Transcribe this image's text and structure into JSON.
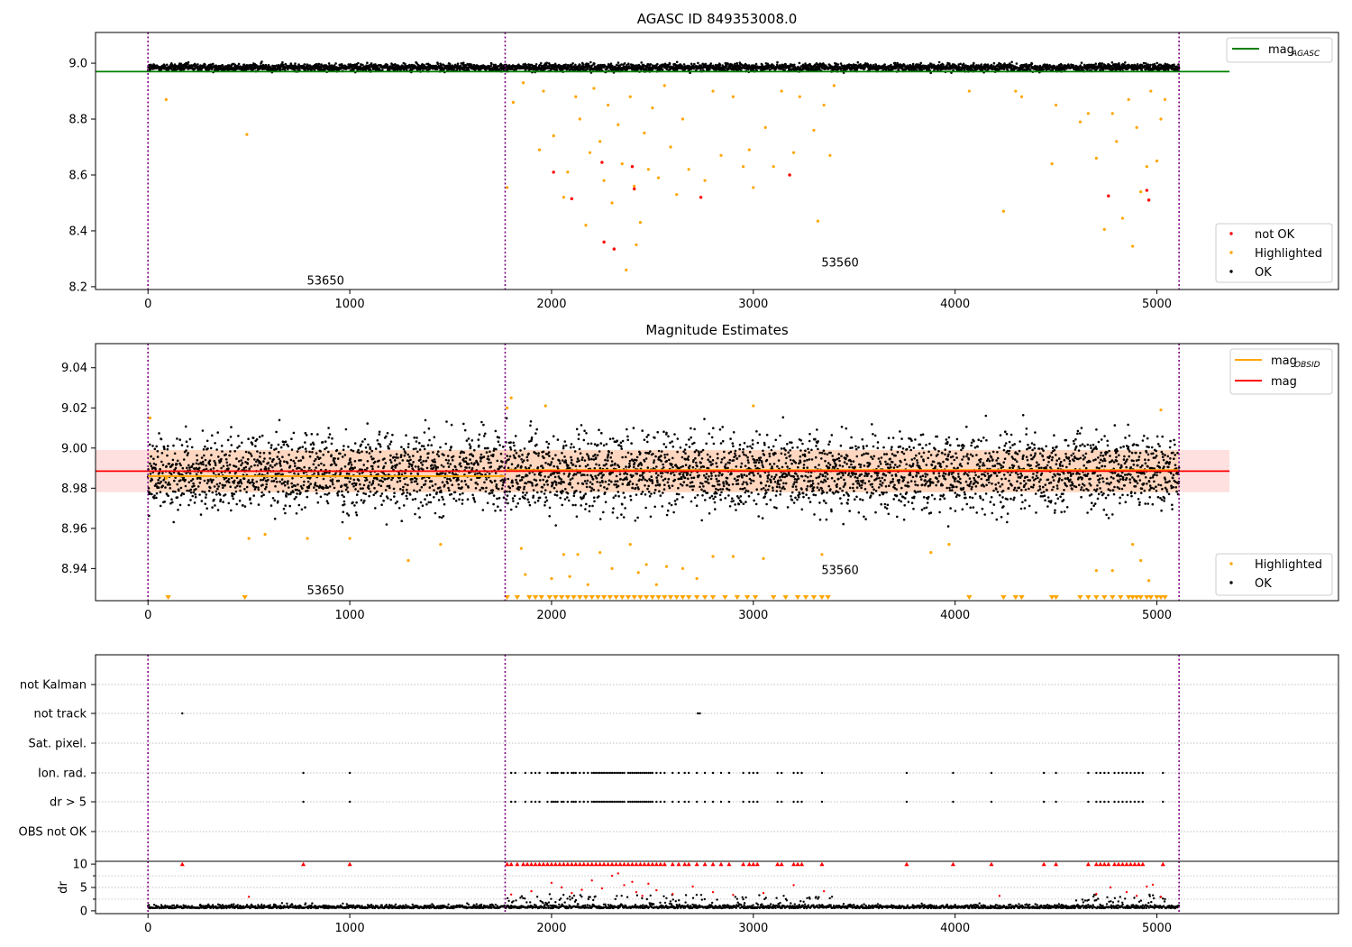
{
  "chart_data": [
    {
      "type": "scatter",
      "title": "AGASC ID 849353008.0",
      "xlim": [
        -260,
        5900
      ],
      "ylim": [
        8.19,
        9.11
      ],
      "yticks": [
        "8.2",
        "8.4",
        "8.6",
        "8.8",
        "9.0"
      ],
      "xticks": [
        "0",
        "1000",
        "2000",
        "3000",
        "4000",
        "5000"
      ],
      "obsid_boundaries": [
        0,
        1770,
        5110
      ],
      "obsid_labels": [
        {
          "text": "53650",
          "x": 880,
          "y": 8.22
        },
        {
          "text": "53560",
          "x": 3430,
          "y": 8.285
        }
      ],
      "agasc_mag": 8.97,
      "ok_band": {
        "center": 8.985,
        "half_width": 0.012
      },
      "highlighted_points": [
        [
          90,
          8.87
        ],
        [
          490,
          8.745
        ],
        [
          1780,
          8.555
        ],
        [
          1810,
          8.86
        ],
        [
          1860,
          8.93
        ],
        [
          1940,
          8.69
        ],
        [
          1960,
          8.9
        ],
        [
          2010,
          8.74
        ],
        [
          2060,
          8.52
        ],
        [
          2080,
          8.61
        ],
        [
          2120,
          8.88
        ],
        [
          2140,
          8.8
        ],
        [
          2170,
          8.42
        ],
        [
          2190,
          8.68
        ],
        [
          2210,
          8.91
        ],
        [
          2240,
          8.72
        ],
        [
          2260,
          8.58
        ],
        [
          2280,
          8.85
        ],
        [
          2300,
          8.5
        ],
        [
          2330,
          8.78
        ],
        [
          2350,
          8.64
        ],
        [
          2370,
          8.26
        ],
        [
          2390,
          8.88
        ],
        [
          2410,
          8.56
        ],
        [
          2420,
          8.35
        ],
        [
          2440,
          8.43
        ],
        [
          2460,
          8.75
        ],
        [
          2480,
          8.62
        ],
        [
          2500,
          8.84
        ],
        [
          2530,
          8.59
        ],
        [
          2560,
          8.92
        ],
        [
          2590,
          8.7
        ],
        [
          2620,
          8.53
        ],
        [
          2650,
          8.8
        ],
        [
          2680,
          8.62
        ],
        [
          2760,
          8.58
        ],
        [
          2800,
          8.9
        ],
        [
          2840,
          8.67
        ],
        [
          2900,
          8.88
        ],
        [
          2950,
          8.63
        ],
        [
          2980,
          8.69
        ],
        [
          3000,
          8.555
        ],
        [
          3060,
          8.77
        ],
        [
          3100,
          8.63
        ],
        [
          3140,
          8.9
        ],
        [
          3200,
          8.68
        ],
        [
          3230,
          8.88
        ],
        [
          3300,
          8.76
        ],
        [
          3320,
          8.435
        ],
        [
          3350,
          8.85
        ],
        [
          3380,
          8.67
        ],
        [
          3400,
          8.92
        ],
        [
          4070,
          8.9
        ],
        [
          4240,
          8.47
        ],
        [
          4300,
          8.9
        ],
        [
          4330,
          8.88
        ],
        [
          4480,
          8.64
        ],
        [
          4500,
          8.85
        ],
        [
          4620,
          8.79
        ],
        [
          4660,
          8.82
        ],
        [
          4700,
          8.66
        ],
        [
          4740,
          8.405
        ],
        [
          4780,
          8.82
        ],
        [
          4800,
          8.72
        ],
        [
          4830,
          8.445
        ],
        [
          4860,
          8.87
        ],
        [
          4880,
          8.345
        ],
        [
          4900,
          8.77
        ],
        [
          4920,
          8.54
        ],
        [
          4950,
          8.63
        ],
        [
          4970,
          8.9
        ],
        [
          5000,
          8.65
        ],
        [
          5020,
          8.8
        ],
        [
          5040,
          8.87
        ]
      ],
      "not_ok_points": [
        [
          2010,
          8.61
        ],
        [
          2100,
          8.515
        ],
        [
          2250,
          8.645
        ],
        [
          2260,
          8.36
        ],
        [
          2310,
          8.335
        ],
        [
          2400,
          8.63
        ],
        [
          2410,
          8.55
        ],
        [
          2740,
          8.52
        ],
        [
          3180,
          8.6
        ],
        [
          4760,
          8.525
        ],
        [
          4950,
          8.545
        ],
        [
          4960,
          8.51
        ]
      ],
      "legend_line": {
        "label": "mag",
        "subscript": "AGASC",
        "color": "#008000",
        "position": "top-right"
      },
      "legend_points": {
        "position": "bottom-right",
        "entries": [
          {
            "label": "not OK",
            "color": "#ff0000"
          },
          {
            "label": "Highlighted",
            "color": "#ffa500"
          },
          {
            "label": "OK",
            "color": "#000000"
          }
        ]
      }
    },
    {
      "type": "scatter",
      "title": "Magnitude Estimates",
      "xlim": [
        -260,
        5900
      ],
      "ylim": [
        8.924,
        9.052
      ],
      "yticks": [
        "8.94",
        "8.96",
        "8.98",
        "9.00",
        "9.02",
        "9.04"
      ],
      "xticks": [
        "0",
        "1000",
        "2000",
        "3000",
        "4000",
        "5000"
      ],
      "obsid_boundaries": [
        0,
        1770,
        5110
      ],
      "obsid_labels": [
        {
          "text": "53650",
          "x": 880,
          "y": 8.929
        },
        {
          "text": "53560",
          "x": 3430,
          "y": 8.939
        }
      ],
      "mag": 8.9885,
      "mag_band": [
        8.978,
        8.999
      ],
      "mag_obsid": [
        {
          "x0": 0,
          "x1": 1770,
          "y": 8.986
        },
        {
          "x0": 1770,
          "x1": 5110,
          "y": 8.989
        }
      ],
      "band_center_ok": 8.988,
      "band_spread_ok": 0.011,
      "highlighted_points": [
        [
          10,
          9.015
        ],
        [
          90,
          8.985
        ],
        [
          500,
          8.955
        ],
        [
          580,
          8.957
        ],
        [
          790,
          8.955
        ],
        [
          1000,
          8.955
        ],
        [
          1290,
          8.944
        ],
        [
          1450,
          8.952
        ],
        [
          1780,
          9.02
        ],
        [
          1800,
          9.025
        ],
        [
          1850,
          8.95
        ],
        [
          1870,
          8.937
        ],
        [
          1970,
          9.021
        ],
        [
          2000,
          8.935
        ],
        [
          2060,
          8.947
        ],
        [
          2090,
          8.936
        ],
        [
          2130,
          8.947
        ],
        [
          2180,
          8.932
        ],
        [
          2240,
          8.948
        ],
        [
          2300,
          8.94
        ],
        [
          2390,
          8.952
        ],
        [
          2430,
          8.938
        ],
        [
          2470,
          8.942
        ],
        [
          2520,
          8.932
        ],
        [
          2570,
          8.941
        ],
        [
          2650,
          8.94
        ],
        [
          2720,
          8.935
        ],
        [
          2800,
          8.946
        ],
        [
          2900,
          8.946
        ],
        [
          3000,
          9.021
        ],
        [
          3050,
          8.945
        ],
        [
          3340,
          8.947
        ],
        [
          3880,
          8.948
        ],
        [
          3970,
          8.952
        ],
        [
          4700,
          8.939
        ],
        [
          4780,
          8.939
        ],
        [
          4880,
          8.952
        ],
        [
          4920,
          8.944
        ],
        [
          4960,
          8.934
        ],
        [
          5020,
          9.019
        ]
      ],
      "bottom_markers_x": [
        100,
        480,
        1780,
        1830,
        1890,
        1920,
        1950,
        1990,
        2020,
        2050,
        2080,
        2110,
        2140,
        2170,
        2200,
        2230,
        2260,
        2290,
        2320,
        2350,
        2380,
        2410,
        2440,
        2470,
        2500,
        2530,
        2560,
        2590,
        2620,
        2650,
        2680,
        2720,
        2760,
        2800,
        2860,
        2920,
        2970,
        3010,
        3100,
        3160,
        3220,
        3260,
        3300,
        3340,
        3370,
        4070,
        4240,
        4300,
        4330,
        4480,
        4500,
        4620,
        4660,
        4700,
        4740,
        4780,
        4820,
        4860,
        4880,
        4900,
        4920,
        4950,
        4970,
        5000,
        5020,
        5040
      ],
      "legend_lines": {
        "position": "top-right",
        "entries": [
          {
            "label": "mag",
            "subscript": "OBSID",
            "color": "#ffa500"
          },
          {
            "label": "mag",
            "subscript": "",
            "color": "#ff0000"
          }
        ]
      },
      "legend_points": {
        "position": "bottom-right",
        "entries": [
          {
            "label": "Highlighted",
            "color": "#ffa500"
          },
          {
            "label": "OK",
            "color": "#000000"
          }
        ]
      }
    },
    {
      "type": "scatter",
      "xlim": [
        -260,
        5900
      ],
      "xticks": [
        "0",
        "1000",
        "2000",
        "3000",
        "4000",
        "5000"
      ],
      "flag_rows": [
        "not Kalman",
        "not track",
        "Sat. pixel.",
        "Ion. rad.",
        "dr > 5",
        "OBS not OK"
      ],
      "obsid_boundaries": [
        0,
        1770,
        5110
      ],
      "not_track_x": [
        170,
        2725,
        2735
      ],
      "flag_x": [
        770,
        1000,
        1800,
        1820,
        1870,
        1900,
        1920,
        1940,
        1980,
        2000,
        2010,
        2020,
        2030,
        2050,
        2060,
        2080,
        2100,
        2110,
        2120,
        2140,
        2160,
        2180,
        2200,
        2210,
        2220,
        2230,
        2240,
        2250,
        2260,
        2270,
        2280,
        2290,
        2300,
        2310,
        2320,
        2330,
        2340,
        2350,
        2360,
        2380,
        2390,
        2400,
        2410,
        2420,
        2430,
        2440,
        2450,
        2460,
        2470,
        2480,
        2490,
        2500,
        2520,
        2540,
        2560,
        2600,
        2630,
        2660,
        2680,
        2720,
        2760,
        2800,
        2840,
        2880,
        2950,
        2980,
        3000,
        3020,
        3120,
        3140,
        3200,
        3220,
        3240,
        3340,
        3760,
        3990,
        4180,
        4440,
        4500,
        4660,
        4700,
        4720,
        4740,
        4760,
        4790,
        4810,
        4830,
        4850,
        4870,
        4890,
        4910,
        4930,
        5030
      ]
    },
    {
      "type": "scatter",
      "ylabel": "dr",
      "xlim": [
        -260,
        5900
      ],
      "ylim": [
        -0.6,
        10.6
      ],
      "yticks": [
        "0",
        "5",
        "10"
      ],
      "xticks": [
        "0",
        "1000",
        "2000",
        "3000",
        "4000",
        "5000"
      ],
      "obsid_boundaries": [
        0,
        1770,
        5110
      ],
      "red_points": [
        [
          500,
          3.0
        ],
        [
          1800,
          3.5
        ],
        [
          1900,
          4.2
        ],
        [
          2000,
          6.0
        ],
        [
          2050,
          5.0
        ],
        [
          2100,
          3.8
        ],
        [
          2150,
          4.5
        ],
        [
          2200,
          6.5
        ],
        [
          2250,
          4.8
        ],
        [
          2300,
          7.5
        ],
        [
          2330,
          8.0
        ],
        [
          2360,
          5.5
        ],
        [
          2400,
          6.2
        ],
        [
          2420,
          4.0
        ],
        [
          2450,
          3.2
        ],
        [
          2480,
          5.8
        ],
        [
          2520,
          4.4
        ],
        [
          2600,
          3.6
        ],
        [
          2700,
          5.2
        ],
        [
          2800,
          4.0
        ],
        [
          2900,
          3.4
        ],
        [
          3050,
          3.8
        ],
        [
          3200,
          5.5
        ],
        [
          3350,
          4.2
        ],
        [
          4220,
          3.2
        ],
        [
          4700,
          3.6
        ],
        [
          4770,
          5.0
        ],
        [
          4850,
          4.0
        ],
        [
          4900,
          3.2
        ],
        [
          4950,
          5.2
        ],
        [
          4980,
          5.6
        ],
        [
          5020,
          3.0
        ]
      ],
      "red_clip_x": [
        170,
        770,
        1000,
        1780,
        1800,
        1830,
        1860,
        1880,
        1900,
        1920,
        1940,
        1960,
        1980,
        2000,
        2020,
        2040,
        2060,
        2080,
        2100,
        2120,
        2140,
        2160,
        2180,
        2200,
        2220,
        2240,
        2260,
        2280,
        2300,
        2320,
        2340,
        2360,
        2380,
        2400,
        2420,
        2440,
        2460,
        2480,
        2500,
        2520,
        2540,
        2560,
        2600,
        2630,
        2660,
        2680,
        2720,
        2760,
        2800,
        2840,
        2880,
        2950,
        2980,
        3000,
        3020,
        3120,
        3140,
        3200,
        3220,
        3240,
        3340,
        3760,
        3990,
        4180,
        4440,
        4500,
        4660,
        4700,
        4720,
        4740,
        4760,
        4790,
        4810,
        4830,
        4850,
        4870,
        4890,
        4910,
        4930,
        5030
      ]
    }
  ],
  "colors": {
    "ok": "#000000",
    "highlighted": "#ffa500",
    "not_ok": "#ff0000",
    "agasc_line": "#008000",
    "mag_line": "#ff0000",
    "obsid_line": "#ffa500",
    "boundary": "#800080"
  }
}
